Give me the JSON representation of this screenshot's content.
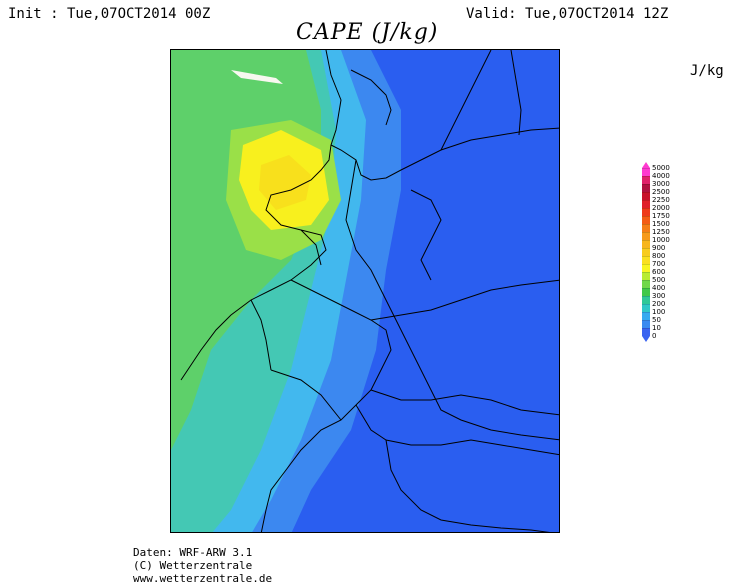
{
  "header": {
    "init": "Init : Tue,07OCT2014 00Z",
    "valid": "Valid: Tue,07OCT2014 12Z",
    "title": "CAPE (J/kg)",
    "units": "J/kg"
  },
  "legend": {
    "levels": [
      "5000",
      "4000",
      "3000",
      "2500",
      "2250",
      "2000",
      "1750",
      "1500",
      "1250",
      "1000",
      "900",
      "800",
      "700",
      "600",
      "500",
      "400",
      "300",
      "200",
      "100",
      "50",
      "10",
      "0"
    ],
    "colors": [
      "#ff3ad0",
      "#e0206a",
      "#b01040",
      "#c8102a",
      "#e0202a",
      "#ef3a1a",
      "#f45c14",
      "#f57e16",
      "#f69a1a",
      "#f7b61c",
      "#f8cc1e",
      "#fae020",
      "#f8f620",
      "#b8ec30",
      "#70d84a",
      "#40c84a",
      "#30c898",
      "#30c8c8",
      "#36aaf0",
      "#3a8af0",
      "#3a64f0"
    ]
  },
  "map": {
    "region": "Central Europe / North Sea",
    "colors": {
      "ocean_green": "#5ed06a",
      "deep_blue": "#2a5ef0",
      "mid_blue": "#3c88f0",
      "cyan": "#42b8ee",
      "teal": "#44c8b4",
      "yellow": "#f8f01e",
      "orange_band": "#f8cc1e"
    }
  },
  "footer": {
    "line1": "Daten: WRF-ARW 3.1",
    "line2": "(C) Wetterzentrale",
    "line3": "www.wetterzentrale.de"
  }
}
